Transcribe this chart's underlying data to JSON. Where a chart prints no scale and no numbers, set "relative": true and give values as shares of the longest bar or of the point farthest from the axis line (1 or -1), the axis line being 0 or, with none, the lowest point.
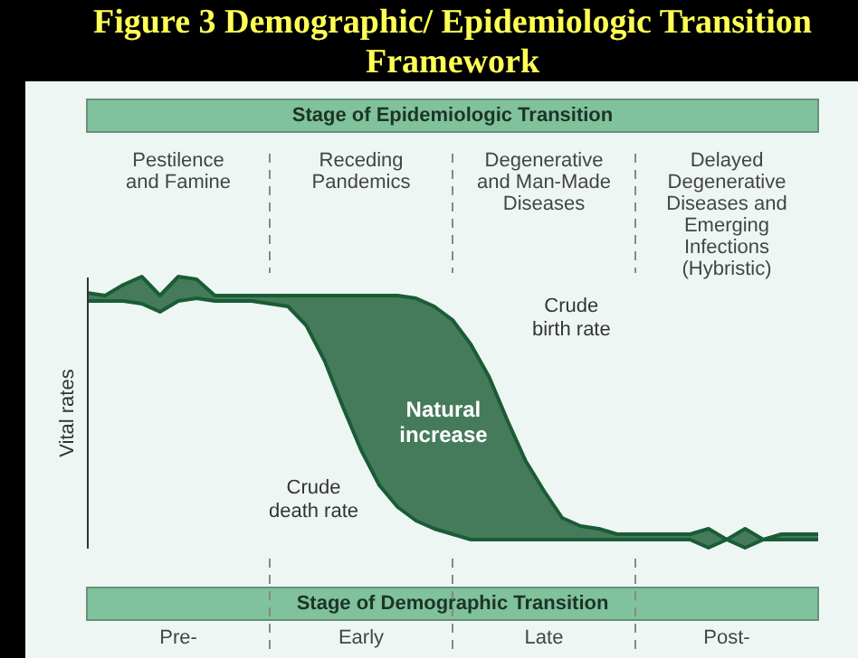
{
  "chart_data": {
    "type": "line",
    "title": "Figure 3  Demographic/ Epidemiologic Transition Framework",
    "ylabel": "Vital rates",
    "relative": true,
    "line_style": "solid",
    "categories": [
      null,
      null,
      null,
      null,
      null,
      null,
      null,
      null,
      null,
      null,
      null,
      null,
      null,
      null,
      null,
      null,
      null,
      null,
      null,
      null,
      null,
      null,
      null,
      null,
      null,
      null,
      null,
      null,
      null,
      null,
      null,
      null,
      null,
      null,
      null,
      null,
      null,
      null,
      null,
      null,
      null
    ],
    "series": [
      {
        "name": "Crude birth rate",
        "color": "#1a5c35",
        "lower": [
          0.91,
          0.91,
          0.91,
          0.9,
          0.87,
          0.91,
          0.92,
          0.91,
          0.91,
          0.91,
          0.9,
          0.89,
          0.82,
          0.69,
          0.52,
          0.36,
          0.23,
          0.15,
          0.1,
          0.07,
          0.05,
          0.03,
          0.03,
          0.03,
          0.03,
          0.03,
          0.03,
          0.03,
          0.03,
          0.03,
          0.03,
          0.03,
          0.03,
          0.03,
          0,
          0.03,
          0,
          0.03,
          0.03,
          0.03,
          0.03
        ],
        "upper": [
          0.94,
          0.93,
          0.97,
          1,
          0.93,
          1,
          0.99,
          0.93,
          0.93,
          0.93,
          0.93,
          0.93,
          0.93,
          0.93,
          0.93,
          0.93,
          0.93,
          0.93,
          0.92,
          0.89,
          0.84,
          0.75,
          0.63,
          0.47,
          0.32,
          0.21,
          0.11,
          0.08,
          0.07,
          0.05,
          0.05,
          0.05,
          0.05,
          0.05,
          0.07,
          0.03,
          0.07,
          0.03,
          0.05,
          0.05,
          0.05
        ],
        "values": [
          0.94,
          0.93,
          0.97,
          1,
          0.93,
          1,
          0.99,
          0.93,
          0.93,
          0.93,
          0.93,
          0.93,
          0.93,
          0.93,
          0.93,
          0.93,
          0.93,
          0.93,
          0.92,
          0.89,
          0.84,
          0.75,
          0.63,
          0.47,
          0.32,
          0.21,
          0.11,
          0.08,
          0.07,
          0.05,
          0.05,
          0.05,
          0.05,
          0.05,
          0.07,
          0.03,
          0.07,
          0.03,
          0.05,
          0.05,
          0.05
        ]
      },
      {
        "name": "Crude death rate",
        "color": "#1a5c35",
        "values": [
          0.91,
          0.91,
          0.91,
          0.9,
          0.87,
          0.91,
          0.92,
          0.91,
          0.91,
          0.91,
          0.9,
          0.89,
          0.82,
          0.69,
          0.52,
          0.36,
          0.23,
          0.15,
          0.1,
          0.07,
          0.05,
          0.03,
          0.03,
          0.03,
          0.03,
          0.03,
          0.03,
          0.03,
          0.03,
          0.03,
          0.03,
          0.03,
          0.03,
          0.03,
          0,
          0.03,
          0,
          0.03,
          0.03,
          0.03,
          0.03
        ]
      }
    ],
    "annotations": [
      "Stage of Epidemiologic Transition",
      "Pestilence\nand Famine",
      "Receding\nPandemics",
      "Degenerative\nand Man-Made\nDiseases",
      "Delayed\nDegenerative\nDiseases and\nEmerging\nInfections\n(Hybristic)",
      "Stage of Demographic Transition",
      "Pre-",
      "Early",
      "Late",
      "Post-",
      "Natural\nincrease"
    ]
  }
}
